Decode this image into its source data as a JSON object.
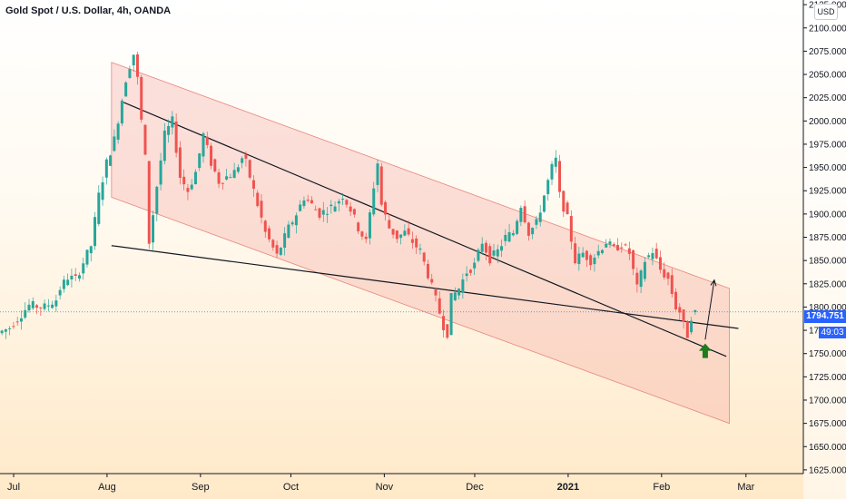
{
  "header": {
    "title": "Gold Spot / U.S. Dollar, 4h, OANDA",
    "currency": "USD"
  },
  "last_price": {
    "value": "1794.751",
    "timer": "49:03",
    "price": 1794.751
  },
  "chart_data": {
    "type": "candlestick",
    "symbol": "Gold Spot / U.S. Dollar",
    "interval": "4h",
    "exchange": "OANDA",
    "y_axis": {
      "position": "right",
      "ylim": [
        1621,
        2130
      ],
      "tick_labels": [
        "1625.000",
        "1650.000",
        "1675.000",
        "1700.000",
        "1725.000",
        "1750.000",
        "1775.000",
        "1800.000",
        "1825.000",
        "1850.000",
        "1875.000",
        "1900.000",
        "1925.000",
        "1950.000",
        "1975.000",
        "2000.000",
        "2025.000",
        "2050.000",
        "2075.000",
        "2100.000",
        "2125.000"
      ],
      "tick_values": [
        1625,
        1650,
        1675,
        1700,
        1725,
        1750,
        1775,
        1800,
        1825,
        1850,
        1875,
        1900,
        1925,
        1950,
        1975,
        2000,
        2025,
        2050,
        2075,
        2100,
        2125
      ]
    },
    "x_axis": {
      "position": "bottom",
      "tick_labels": [
        "Jul",
        "Aug",
        "Sep",
        "Oct",
        "Nov",
        "Dec",
        "2021",
        "Feb",
        "Mar"
      ]
    },
    "colors": {
      "up": "#26a69a",
      "down": "#ef5350",
      "channel_fill": "#f3a19a",
      "trendline": "#131722",
      "arrow": "#1e7b1e",
      "last_price": "#2962ff"
    },
    "price_path": [
      [
        0,
        1772
      ],
      [
        3,
        1778
      ],
      [
        8,
        1802
      ],
      [
        12,
        1800
      ],
      [
        15,
        1808
      ],
      [
        16,
        1820
      ],
      [
        18,
        1832
      ],
      [
        20,
        1830
      ],
      [
        24,
        1866
      ],
      [
        26,
        1920
      ],
      [
        28,
        1955
      ],
      [
        30,
        1980
      ],
      [
        33,
        2045
      ],
      [
        34,
        2060
      ],
      [
        35,
        2072
      ],
      [
        36,
        2045
      ],
      [
        37,
        2000
      ],
      [
        38,
        1960
      ],
      [
        39,
        1870
      ],
      [
        41,
        1930
      ],
      [
        43,
        1985
      ],
      [
        45,
        2000
      ],
      [
        47,
        1940
      ],
      [
        49,
        1925
      ],
      [
        51,
        1945
      ],
      [
        53,
        1985
      ],
      [
        55,
        1955
      ],
      [
        57,
        1935
      ],
      [
        59,
        1940
      ],
      [
        61,
        1945
      ],
      [
        63,
        1960
      ],
      [
        64,
        1955
      ],
      [
        65,
        1940
      ],
      [
        67,
        1910
      ],
      [
        69,
        1880
      ],
      [
        72,
        1855
      ],
      [
        75,
        1885
      ],
      [
        77,
        1900
      ],
      [
        79,
        1918
      ],
      [
        81,
        1910
      ],
      [
        83,
        1900
      ],
      [
        85,
        1905
      ],
      [
        87,
        1910
      ],
      [
        89,
        1920
      ],
      [
        91,
        1905
      ],
      [
        93,
        1885
      ],
      [
        95,
        1870
      ],
      [
        97,
        1930
      ],
      [
        98,
        1955
      ],
      [
        99,
        1910
      ],
      [
        101,
        1885
      ],
      [
        103,
        1875
      ],
      [
        105,
        1880
      ],
      [
        107,
        1870
      ],
      [
        109,
        1860
      ],
      [
        111,
        1835
      ],
      [
        113,
        1808
      ],
      [
        115,
        1780
      ],
      [
        116,
        1772
      ],
      [
        117,
        1810
      ],
      [
        119,
        1820
      ],
      [
        121,
        1838
      ],
      [
        123,
        1845
      ],
      [
        125,
        1870
      ],
      [
        127,
        1852
      ],
      [
        129,
        1860
      ],
      [
        131,
        1875
      ],
      [
        133,
        1880
      ],
      [
        135,
        1910
      ],
      [
        137,
        1880
      ],
      [
        139,
        1890
      ],
      [
        141,
        1920
      ],
      [
        143,
        1950
      ],
      [
        144,
        1958
      ],
      [
        145,
        1920
      ],
      [
        147,
        1895
      ],
      [
        149,
        1850
      ],
      [
        151,
        1858
      ],
      [
        153,
        1850
      ],
      [
        155,
        1860
      ],
      [
        157,
        1870
      ],
      [
        159,
        1862
      ],
      [
        161,
        1868
      ],
      [
        163,
        1858
      ],
      [
        165,
        1820
      ],
      [
        167,
        1850
      ],
      [
        169,
        1860
      ],
      [
        171,
        1840
      ],
      [
        173,
        1830
      ],
      [
        175,
        1800
      ],
      [
        176,
        1795
      ],
      [
        177,
        1780
      ],
      [
        178,
        1770
      ],
      [
        179,
        1790
      ],
      [
        180,
        1794
      ]
    ],
    "channel": [
      [
        "2020-08-07",
        2063
      ],
      [
        "2021-02-28",
        1820
      ],
      [
        "2021-02-28",
        1675
      ],
      [
        "2020-08-07",
        1918
      ]
    ],
    "trendlines": [
      {
        "from": [
          "2020-08-11",
          2020
        ],
        "to": [
          "2021-02-27",
          1747
        ]
      },
      {
        "from": [
          "2020-08-07",
          1866
        ],
        "to": [
          "2021-03-03",
          1777
        ]
      }
    ],
    "annotations": [
      {
        "type": "arrow",
        "from": [
          "2021-02-20",
          1765
        ],
        "to": [
          "2021-02-23",
          1829
        ]
      },
      {
        "type": "up-arrow-marker",
        "at": [
          "2021-02-20",
          1752
        ],
        "color": "green"
      }
    ],
    "grid": false
  }
}
